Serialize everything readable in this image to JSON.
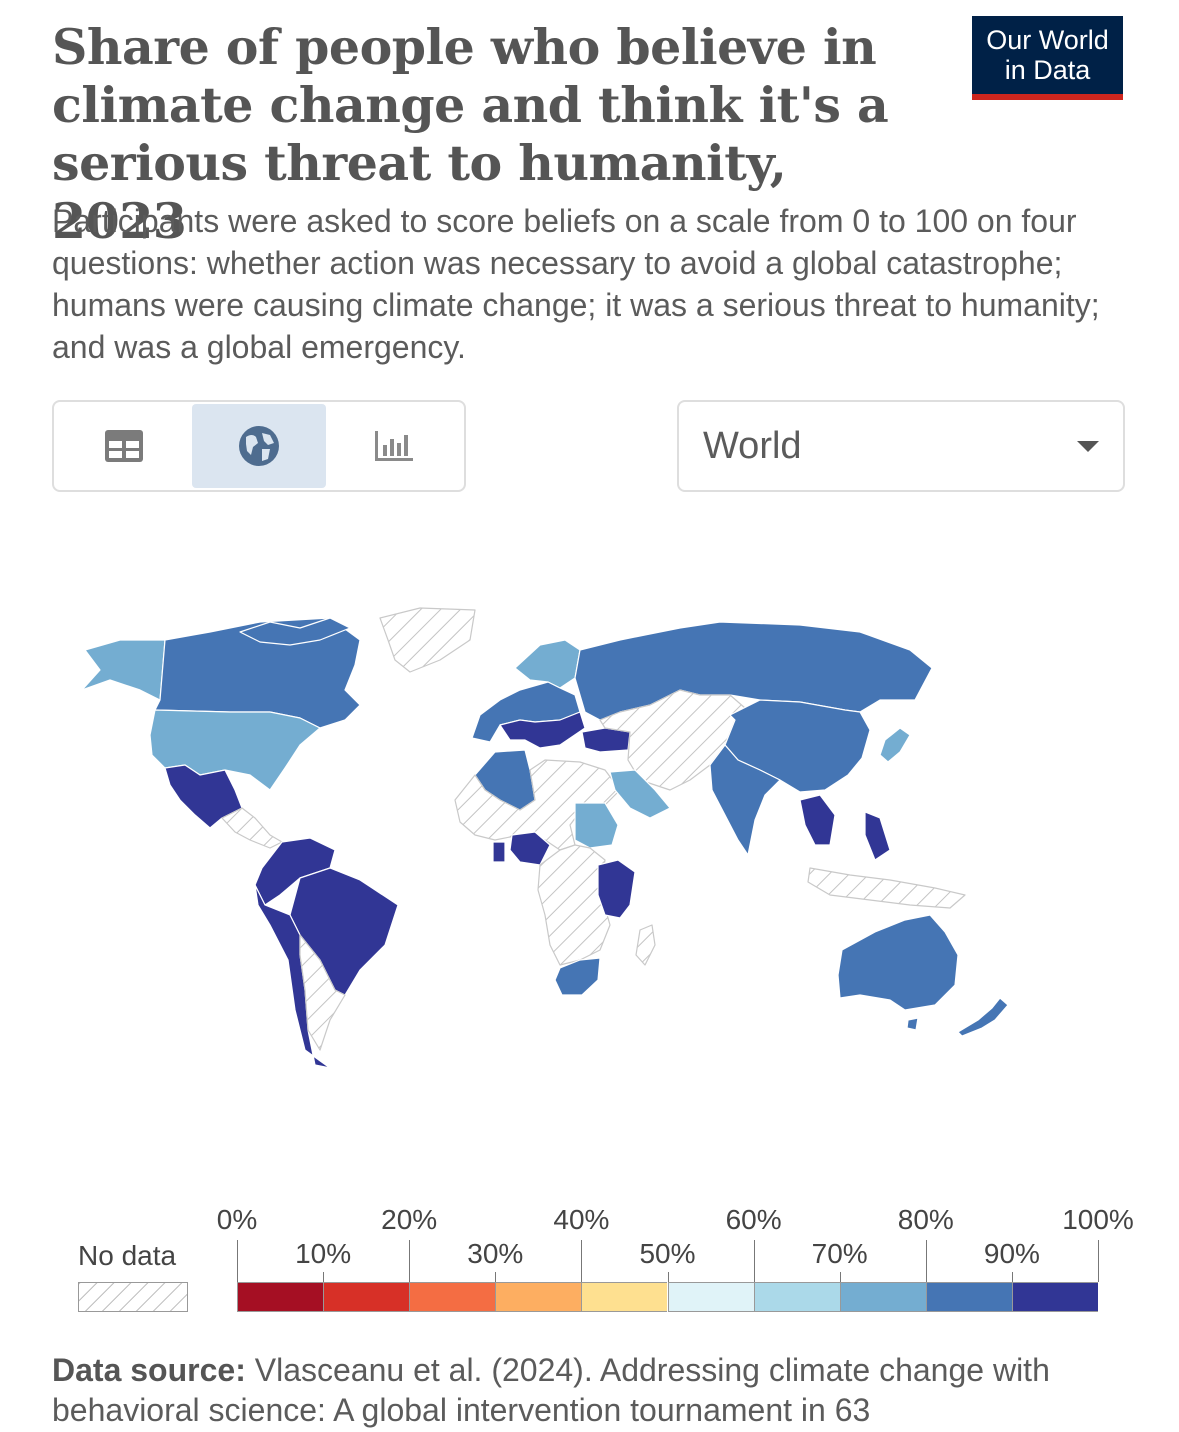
{
  "title": "Share of people who believe in climate change and think it's a serious threat to humanity, 2023",
  "subtitle": "Participants were asked to score beliefs on a scale from 0 to 100 on four questions: whether action was necessary to avoid a global catastrophe; humans were causing climate change; it was a serious threat to humanity; and was a global emergency.",
  "logo": {
    "line1": "Our World",
    "line2": "in Data"
  },
  "view_tabs": [
    {
      "name": "table",
      "icon": "table-icon"
    },
    {
      "name": "map",
      "icon": "globe-icon",
      "active": true
    },
    {
      "name": "chart",
      "icon": "bar-chart-icon"
    }
  ],
  "region": {
    "selected": "World"
  },
  "legend": {
    "no_data_label": "No data",
    "ticks_top": [
      "0%",
      "20%",
      "40%",
      "60%",
      "80%",
      "100%"
    ],
    "ticks_bottom": [
      "10%",
      "30%",
      "50%",
      "70%",
      "90%"
    ],
    "colors": [
      "#a50f23",
      "#d73027",
      "#f46d43",
      "#fdae61",
      "#fee090",
      "#e0f3f8",
      "#abd9e9",
      "#74add1",
      "#4575b4",
      "#313695"
    ]
  },
  "source": {
    "label": "Data source:",
    "text": "Vlasceanu et al. (2024). Addressing climate change with behavioral science: A global intervention tournament in 63"
  },
  "chart_data": {
    "type": "choropleth",
    "title": "Share of people who believe in climate change and think it's a serious threat to humanity, 2023",
    "scale": {
      "min": 0,
      "max": 100,
      "unit": "%",
      "bin_width": 10
    },
    "regions": [
      {
        "name": "Canada",
        "bin": "80-90%"
      },
      {
        "name": "United States",
        "bin": "70-80%"
      },
      {
        "name": "Alaska",
        "bin": "70-80%"
      },
      {
        "name": "Greenland",
        "bin": "No data"
      },
      {
        "name": "Mexico",
        "bin": "90-100%"
      },
      {
        "name": "Central America",
        "bin": "No data"
      },
      {
        "name": "Northern South America",
        "bin": "90-100%"
      },
      {
        "name": "Brazil",
        "bin": "90-100%"
      },
      {
        "name": "Chile",
        "bin": "90-100%"
      },
      {
        "name": "Argentina",
        "bin": "No data"
      },
      {
        "name": "Western Europe",
        "bin": "80-90%"
      },
      {
        "name": "Scandinavia",
        "bin": "70-80%"
      },
      {
        "name": "Southern Europe",
        "bin": "90-100%"
      },
      {
        "name": "Turkey",
        "bin": "90-100%"
      },
      {
        "name": "Russia",
        "bin": "80-90%"
      },
      {
        "name": "Central Asia",
        "bin": "No data"
      },
      {
        "name": "China",
        "bin": "80-90%"
      },
      {
        "name": "India",
        "bin": "80-90%"
      },
      {
        "name": "Southeast Asia",
        "bin": "90-100%"
      },
      {
        "name": "Japan",
        "bin": "70-80%"
      },
      {
        "name": "North Africa",
        "bin": "80-90%"
      },
      {
        "name": "Saudi Arabia",
        "bin": "70-80%"
      },
      {
        "name": "Sudan",
        "bin": "70-80%"
      },
      {
        "name": "Nigeria",
        "bin": "90-100%"
      },
      {
        "name": "East Africa",
        "bin": "90-100%"
      },
      {
        "name": "Central Africa",
        "bin": "No data"
      },
      {
        "name": "South Africa",
        "bin": "80-90%"
      },
      {
        "name": "Australia",
        "bin": "80-90%"
      },
      {
        "name": "New Zealand",
        "bin": "80-90%"
      }
    ]
  }
}
